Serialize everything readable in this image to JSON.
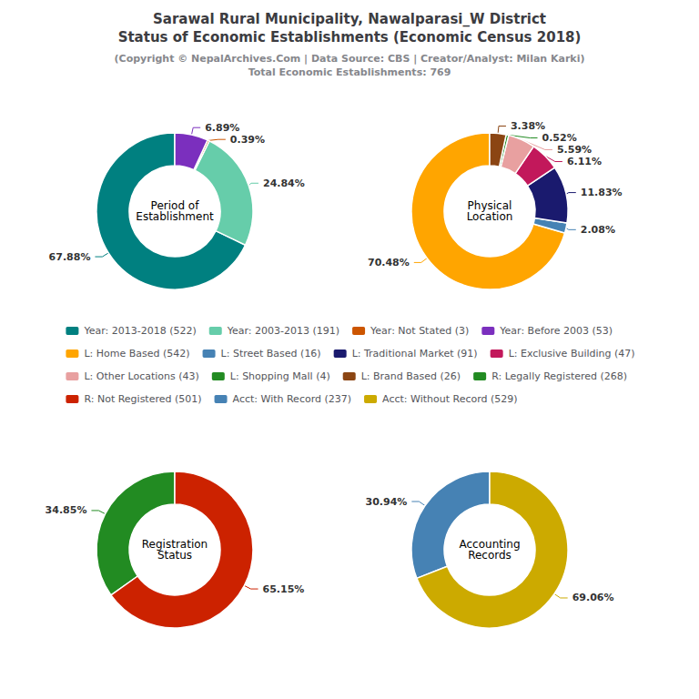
{
  "title": "Sarawal Rural Municipality, Nawalparasi_W District\nStatus of Economic Establishments (Economic Census 2018)",
  "subtitle": "(Copyright © NepalArchives.Com | Data Source: CBS | Creator/Analyst: Milan Karki)\nTotal Economic Establishments: 769",
  "chart_data": [
    {
      "type": "pie",
      "title": "Period of\nEstablishment",
      "categories": [
        "Year: 2013-2018 (522)",
        "Year: 2003-2013 (191)",
        "Year: Not Stated (3)",
        "Year: Before 2003 (53)"
      ],
      "values": [
        67.88,
        24.84,
        0.39,
        6.89
      ],
      "value_labels": [
        "67.88%",
        "24.84%",
        "0.39%",
        "6.89%"
      ],
      "colors": [
        "#008080",
        "#66cdaa",
        "#cc5500",
        "#7b2fbe"
      ],
      "data_labels": true
    },
    {
      "type": "pie",
      "title": "Physical\nLocation",
      "categories": [
        "L: Home Based (542)",
        "L: Street Based (16)",
        "L: Traditional Market (91)",
        "L: Exclusive Building (47)",
        "L: Other Locations (43)",
        "L: Shopping Mall (4)",
        "L: Brand Based (26)"
      ],
      "values": [
        70.48,
        2.08,
        11.83,
        6.11,
        5.59,
        0.52,
        3.38
      ],
      "value_labels": [
        "70.48%",
        "2.08%",
        "11.83%",
        "6.11%",
        "5.59%",
        "0.52%",
        "3.38%"
      ],
      "colors": [
        "#ffa500",
        "#4682b4",
        "#1a1a6e",
        "#c2185b",
        "#e8a0a0",
        "#228b22",
        "#8b4513"
      ],
      "data_labels": true
    },
    {
      "type": "pie",
      "title": "Registration\nStatus",
      "categories": [
        "R: Legally Registered (268)",
        "R: Not Registered (501)"
      ],
      "values": [
        34.85,
        65.15
      ],
      "value_labels": [
        "34.85%",
        "65.15%"
      ],
      "colors": [
        "#228b22",
        "#cc2200"
      ],
      "data_labels": true
    },
    {
      "type": "pie",
      "title": "Accounting\nRecords",
      "categories": [
        "Acct: With Record (237)",
        "Acct: Without Record (529)"
      ],
      "values": [
        30.94,
        69.06
      ],
      "value_labels": [
        "30.94%",
        "69.06%"
      ],
      "colors": [
        "#4682b4",
        "#ccaa00"
      ],
      "data_labels": true
    }
  ]
}
